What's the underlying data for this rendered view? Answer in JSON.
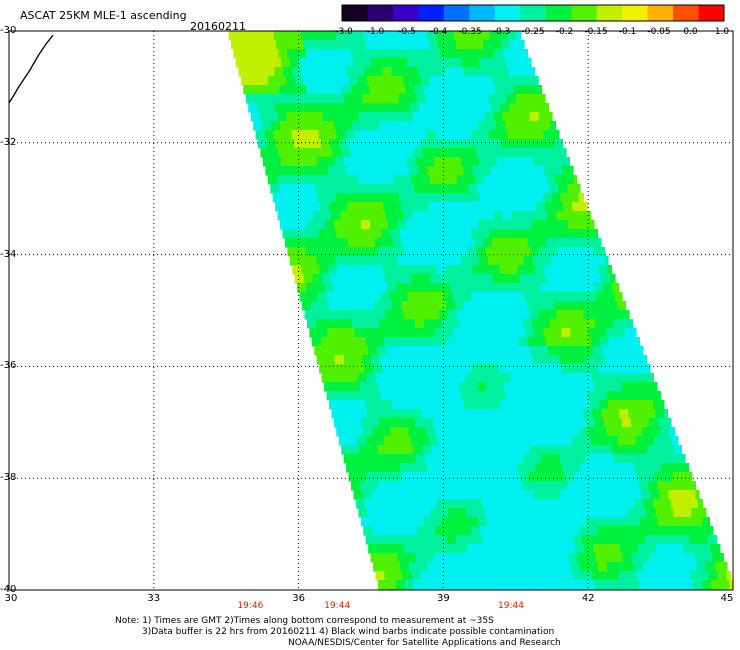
{
  "header": {
    "title": "ASCAT 25KM MLE-1 ascending",
    "date": "20160211"
  },
  "colorbar": {
    "ticks": [
      "-3.0",
      "-1.0",
      "-0.5",
      "-0.4",
      "-0.35",
      "-0.3",
      "-0.25",
      "-0.2",
      "-0.15",
      "-0.1",
      "-0.05",
      "0.0",
      "1.0"
    ],
    "colors": [
      "#150025",
      "#2a0070",
      "#3a00c8",
      "#0020ff",
      "#0070ff",
      "#00b8ff",
      "#00f0f0",
      "#00f0a0",
      "#00f040",
      "#50f000",
      "#c0f000",
      "#f0f000",
      "#ffb000",
      "#ff5000",
      "#ff0000"
    ]
  },
  "map": {
    "lat_labels": [
      "-30",
      "-32",
      "-34",
      "-36",
      "-38",
      "-40"
    ],
    "lon_labels": [
      "30",
      "33",
      "36",
      "39",
      "42",
      "45"
    ],
    "lat_values": [
      -30,
      -32,
      -34,
      -36,
      -38,
      -40
    ],
    "lon_values": [
      30,
      33,
      36,
      39,
      42,
      45
    ],
    "times": [
      {
        "label": "19:46",
        "lon": 35.0
      },
      {
        "label": "19:44",
        "lon": 36.8
      },
      {
        "label": "19:44",
        "lon": 40.4
      }
    ]
  },
  "notes": {
    "line1": "Note: 1) Times are GMT 2)Times along bottom correspond to measurement at ~35S",
    "line2": "3)Data buffer is 22 hrs from 20160211 4) Black wind barbs indicate possible contamination",
    "line3": "NOAA/NESDIS/Center for Satellite Applications and Research"
  }
}
